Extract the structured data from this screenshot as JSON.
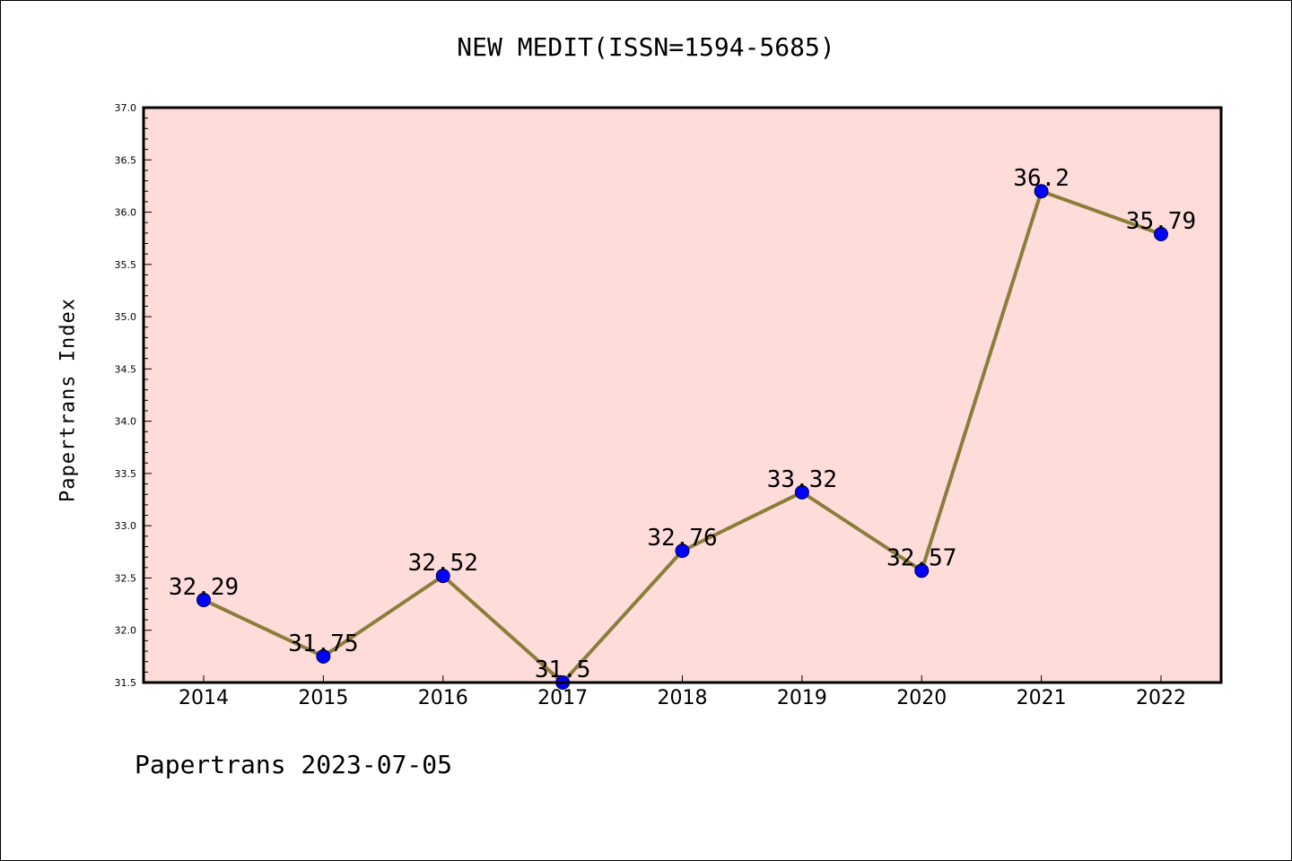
{
  "chart_data": {
    "type": "line",
    "title": "NEW MEDIT(ISSN=1594-5685)",
    "xlabel": "",
    "ylabel": "Papertrans Index",
    "categories": [
      "2014",
      "2015",
      "2016",
      "2017",
      "2018",
      "2019",
      "2020",
      "2021",
      "2022"
    ],
    "series": [
      {
        "values": [
          32.29,
          31.75,
          32.52,
          31.5,
          32.76,
          33.32,
          32.57,
          36.2,
          35.79
        ],
        "labels": [
          "32.29",
          "31.75",
          "32.52",
          "31.5",
          "32.76",
          "33.32",
          "32.57",
          "36.2",
          "35.79"
        ],
        "line_color": "#8b7d3a",
        "marker_color": "#0000ff"
      }
    ],
    "ylim": [
      31.5,
      37.0
    ],
    "yticks": [
      "31.5",
      "32.0",
      "32.5",
      "33.0",
      "33.5",
      "34.0",
      "34.5",
      "35.0",
      "35.5",
      "36.0",
      "36.5",
      "37.0"
    ],
    "plot_background": "#fddcda",
    "grid": false,
    "legend": "none"
  },
  "footer": {
    "text": "Papertrans 2023-07-05"
  }
}
